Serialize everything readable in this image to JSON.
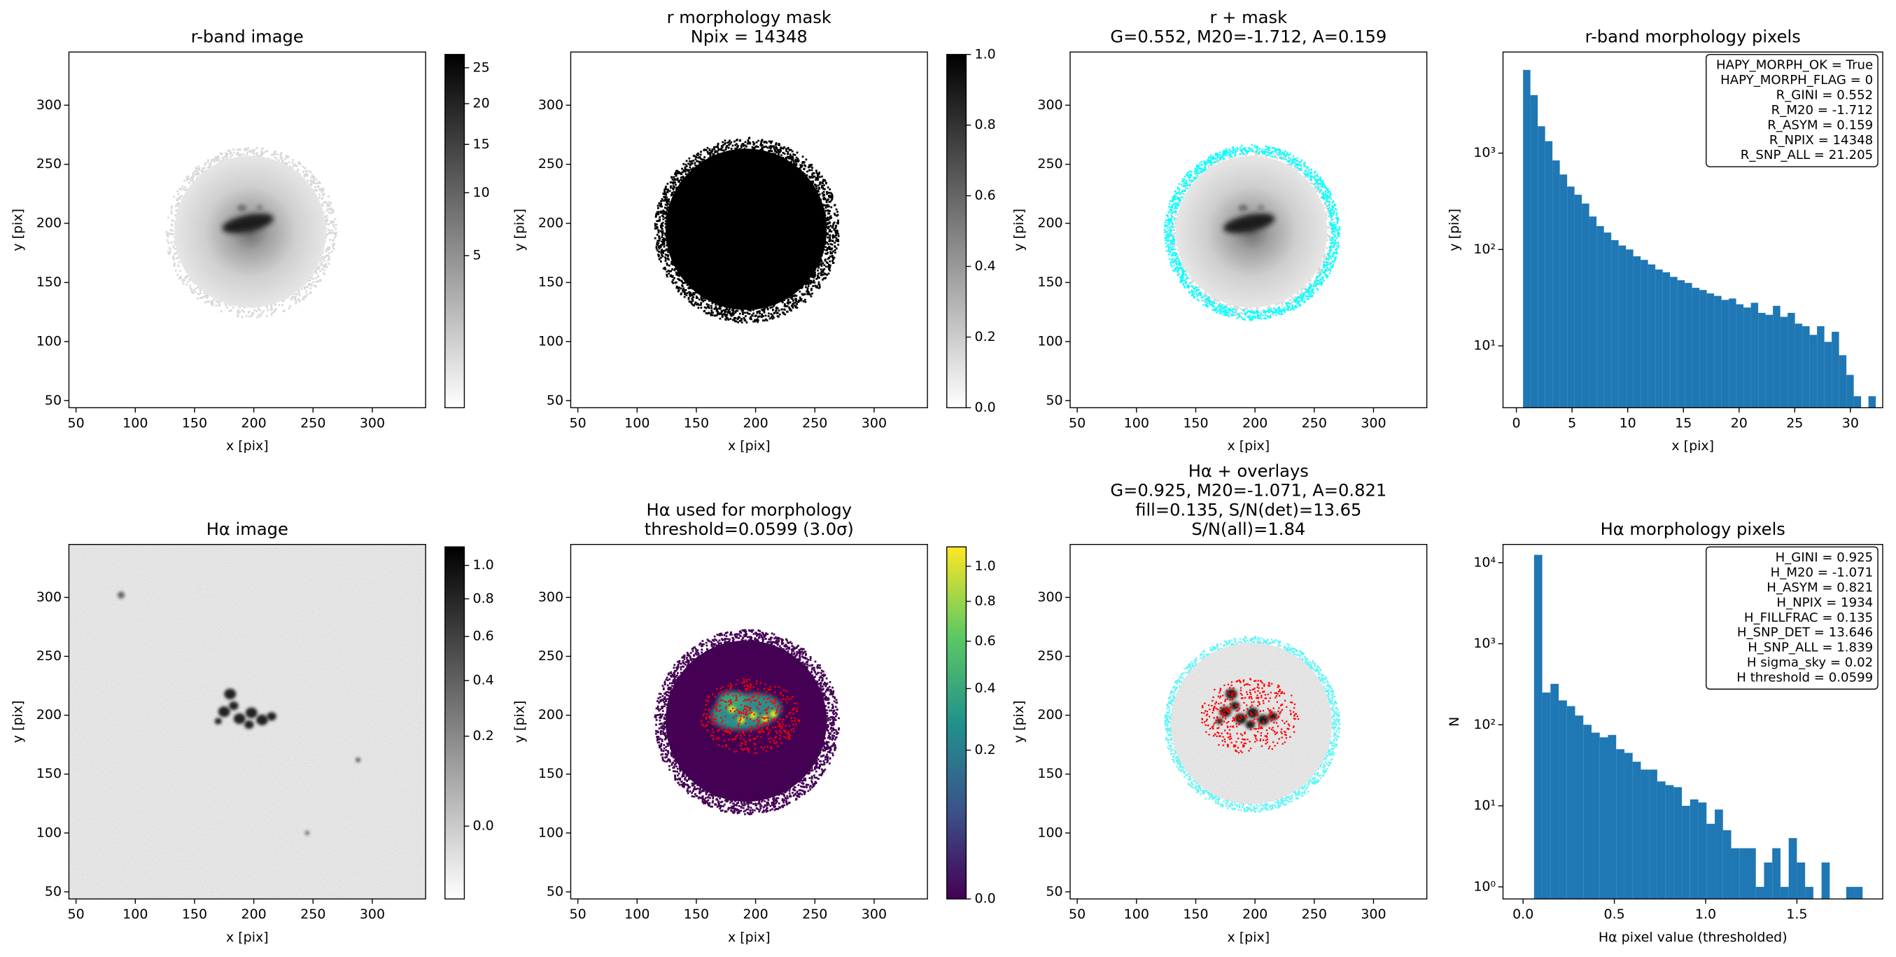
{
  "chart_data": [
    {
      "type": "image",
      "title": [
        "r-band image"
      ],
      "xlabel": "x [pix]",
      "ylabel": "y [pix]",
      "xlim": [
        44,
        345
      ],
      "ylim": [
        44,
        345
      ],
      "xticks": [
        50,
        100,
        150,
        200,
        250,
        300
      ],
      "yticks": [
        50,
        100,
        150,
        200,
        250,
        300
      ],
      "cmap": "gray_r",
      "colorbar": {
        "lim": [
          0,
          27
        ],
        "scale": "sqrt",
        "ticks": [
          5,
          10,
          15,
          20,
          25
        ]
      }
    },
    {
      "type": "image",
      "title": [
        "r morphology mask",
        "Npix = 14348"
      ],
      "xlabel": "x [pix]",
      "ylabel": "y [pix]",
      "xlim": [
        44,
        345
      ],
      "ylim": [
        44,
        345
      ],
      "xticks": [
        50,
        100,
        150,
        200,
        250,
        300
      ],
      "yticks": [
        50,
        100,
        150,
        200,
        250,
        300
      ],
      "cmap": "gray_r",
      "colorbar": {
        "lim": [
          0,
          1
        ],
        "scale": "linear",
        "ticks": [
          {
            "value": 0,
            "label": "0.0"
          },
          0.2,
          0.4,
          0.6,
          0.8,
          {
            "value": 1,
            "label": "1.0"
          }
        ]
      }
    },
    {
      "type": "image",
      "title": [
        "r + mask",
        "G=0.552, M20=-1.712, A=0.159"
      ],
      "xlabel": "x [pix]",
      "ylabel": "y [pix]",
      "xlim": [
        44,
        345
      ],
      "ylim": [
        44,
        345
      ],
      "xticks": [
        50,
        100,
        150,
        200,
        250,
        300
      ],
      "yticks": [
        50,
        100,
        150,
        200,
        250,
        300
      ],
      "cmap": "gray_r",
      "overlay_colors": [
        "#00ffff"
      ]
    },
    {
      "type": "histogram",
      "title": [
        "r-band morphology pixels"
      ],
      "xlabel": "x [pix]",
      "ylabel": "y [pix]",
      "xlim": [
        -1.2,
        32.9
      ],
      "ylim": [
        2.28,
        11200
      ],
      "log_y": true,
      "color": "#1f77b4",
      "xticks": [
        0,
        5,
        10,
        15,
        20,
        25,
        30
      ],
      "yticks": [
        {
          "value": 10,
          "label": "10¹"
        },
        {
          "value": 100,
          "label": "10²"
        },
        {
          "value": 1000,
          "label": "10³"
        }
      ],
      "bins": [
        0.6,
        1.26,
        1.92,
        2.58,
        3.24,
        3.9,
        4.56,
        5.22,
        5.88,
        6.54,
        7.2,
        7.86,
        8.52,
        9.18,
        9.84,
        10.5,
        11.16,
        11.82,
        12.48,
        13.14,
        13.8,
        14.46,
        15.12,
        15.78,
        16.44,
        17.1,
        17.76,
        18.42,
        19.08,
        19.74,
        20.4,
        21.06,
        21.72,
        22.38,
        23.04,
        23.7,
        24.36,
        25.02,
        25.68,
        26.34,
        27.0,
        27.66,
        28.32,
        28.98,
        29.64,
        30.3,
        30.96,
        31.62,
        32.28
      ],
      "values": [
        7300,
        4000,
        1900,
        1330,
        840,
        600,
        450,
        370,
        300,
        220,
        175,
        150,
        125,
        110,
        100,
        85,
        78,
        70,
        62,
        58,
        52,
        48,
        45,
        40,
        38,
        35,
        33,
        30,
        31,
        27,
        25,
        28,
        22,
        21,
        26,
        20,
        22,
        17,
        16,
        13,
        16,
        11,
        14,
        8,
        5,
        3,
        2,
        3
      ],
      "annotation": [
        "HAPY_MORPH_OK = True",
        "HAPY_MORPH_FLAG = 0",
        "R_GINI = 0.552",
        "R_M20 = -1.712",
        "R_ASYM = 0.159",
        "R_NPIX = 14348",
        "R_SNP_ALL = 21.205"
      ]
    },
    {
      "type": "image",
      "title": [
        "Hα image"
      ],
      "xlabel": "x [pix]",
      "ylabel": "y [pix]",
      "xlim": [
        44,
        345
      ],
      "ylim": [
        44,
        345
      ],
      "xticks": [
        50,
        100,
        150,
        200,
        250,
        300
      ],
      "yticks": [
        50,
        100,
        150,
        200,
        250,
        300
      ],
      "cmap": "gray_r",
      "colorbar": {
        "lim": [
          -0.05,
          1.12
        ],
        "scale": "sqrt",
        "ticks": [
          {
            "value": 0,
            "label": "0.0"
          },
          0.2,
          0.4,
          0.6,
          0.8,
          {
            "value": 1,
            "label": "1.0"
          }
        ]
      }
    },
    {
      "type": "image",
      "title": [
        "Hα used for morphology",
        "threshold=0.0599 (3.0σ)"
      ],
      "xlabel": "x [pix]",
      "ylabel": "y [pix]",
      "xlim": [
        44,
        345
      ],
      "ylim": [
        44,
        345
      ],
      "xticks": [
        50,
        100,
        150,
        200,
        250,
        300
      ],
      "yticks": [
        50,
        100,
        150,
        200,
        250,
        300
      ],
      "cmap": "viridis",
      "overlay_colors": [
        "#ff0000"
      ],
      "colorbar": {
        "lim": [
          0,
          1.12
        ],
        "scale": "sqrt",
        "ticks": [
          {
            "value": 0,
            "label": "0.0"
          },
          0.2,
          0.4,
          0.6,
          0.8,
          {
            "value": 1,
            "label": "1.0"
          }
        ]
      }
    },
    {
      "type": "image",
      "title": [
        "Hα + overlays",
        "G=0.925, M20=-1.071, A=0.821",
        "fill=0.135, S/N(det)=13.65",
        "S/N(all)=1.84"
      ],
      "xlabel": "x [pix]",
      "ylabel": "y [pix]",
      "xlim": [
        44,
        345
      ],
      "ylim": [
        44,
        345
      ],
      "xticks": [
        50,
        100,
        150,
        200,
        250,
        300
      ],
      "yticks": [
        50,
        100,
        150,
        200,
        250,
        300
      ],
      "cmap": "gray_r",
      "overlay_colors": [
        "#00ffff",
        "#ff0000"
      ]
    },
    {
      "type": "histogram",
      "title": [
        "Hα morphology pixels"
      ],
      "xlabel": "Hα pixel value (thresholded)",
      "ylabel": "N",
      "xlim": [
        -0.11,
        1.97
      ],
      "ylim": [
        0.71,
        16800
      ],
      "log_y": true,
      "color": "#1f77b4",
      "xticks": [
        {
          "value": 0,
          "label": "0.0"
        },
        0.5,
        {
          "value": 1,
          "label": "1.0"
        },
        1.5
      ],
      "yticks": [
        {
          "value": 1,
          "label": "10⁰"
        },
        {
          "value": 10,
          "label": "10¹"
        },
        {
          "value": 100,
          "label": "10²"
        },
        {
          "value": 1000,
          "label": "10³"
        },
        {
          "value": 10000,
          "label": "10⁴"
        }
      ],
      "bins": [
        0.06,
        0.105,
        0.15,
        0.195,
        0.24,
        0.285,
        0.33,
        0.375,
        0.42,
        0.465,
        0.51,
        0.555,
        0.6,
        0.645,
        0.69,
        0.735,
        0.78,
        0.825,
        0.87,
        0.915,
        0.96,
        1.005,
        1.05,
        1.095,
        1.14,
        1.185,
        1.23,
        1.275,
        1.32,
        1.365,
        1.41,
        1.455,
        1.5,
        1.545,
        1.59,
        1.635,
        1.68,
        1.725,
        1.77,
        1.815,
        1.86
      ],
      "values": [
        12500,
        250,
        320,
        200,
        170,
        130,
        100,
        80,
        70,
        75,
        50,
        45,
        35,
        28,
        28,
        20,
        18,
        17,
        10,
        12,
        11,
        6,
        9,
        5,
        3,
        3,
        3,
        1,
        2,
        3,
        1,
        4,
        2,
        1,
        0,
        2,
        0,
        0,
        1,
        1
      ],
      "annotation": [
        "H_GINI = 0.925",
        "H_M20 = -1.071",
        "H_ASYM = 0.821",
        "H_NPIX = 1934",
        "H_FILLFRAC = 0.135",
        "H_SNP_DET = 13.646",
        "H_SNP_ALL = 1.839",
        "H sigma_sky = 0.02",
        "H threshold = 0.0599"
      ]
    }
  ]
}
